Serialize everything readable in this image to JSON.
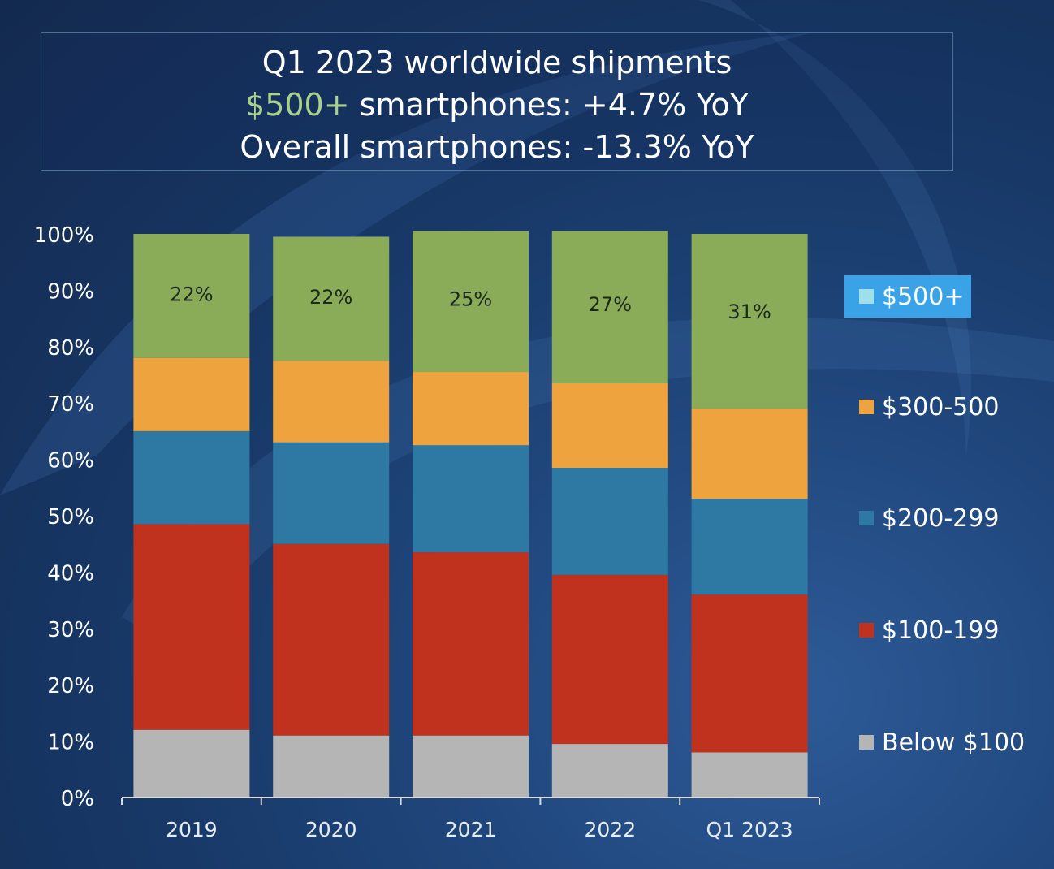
{
  "title": {
    "line1": "Q1 2023 worldwide shipments",
    "line2_accent": "$500+",
    "line2_rest": " smartphones: +4.7% YoY",
    "line3": "Overall smartphones: -13.3% YoY"
  },
  "colors": {
    "accent_title": "#a9d08e",
    "below100": "#b5b5b5",
    "s100_199": "#c0321e",
    "s200_299": "#2e79a3",
    "s300_500": "#eea33e",
    "s500plus": "#8aab58",
    "legend_highlight": "#3aa3e8",
    "legend_500_swatch": "#9fe0e8"
  },
  "chart_data": {
    "type": "bar",
    "stacked": true,
    "percent": true,
    "categories": [
      "2019",
      "2020",
      "2021",
      "2022",
      "Q1 2023"
    ],
    "series": [
      {
        "name": "Below $100",
        "values": [
          12,
          11,
          11,
          9.5,
          8
        ]
      },
      {
        "name": "$100-199",
        "values": [
          36.5,
          34,
          32.5,
          30,
          28
        ]
      },
      {
        "name": "$200-299",
        "values": [
          16.5,
          18,
          19,
          19,
          17
        ]
      },
      {
        "name": "$300-500",
        "values": [
          13,
          14.5,
          13,
          15,
          16
        ]
      },
      {
        "name": "$500+",
        "values": [
          22,
          22,
          25,
          27,
          31
        ]
      }
    ],
    "data_labels": {
      "series": "$500+",
      "labels": [
        "22%",
        "22%",
        "25%",
        "27%",
        "31%"
      ]
    },
    "yticks": [
      "0%",
      "10%",
      "20%",
      "30%",
      "40%",
      "50%",
      "60%",
      "70%",
      "80%",
      "90%",
      "100%"
    ],
    "ylim": [
      0,
      100
    ],
    "legend": [
      "$500+",
      "$300-500",
      "$200-299",
      "$100-199",
      "Below $100"
    ],
    "legend_highlighted": "$500+",
    "legend_position": "right"
  }
}
